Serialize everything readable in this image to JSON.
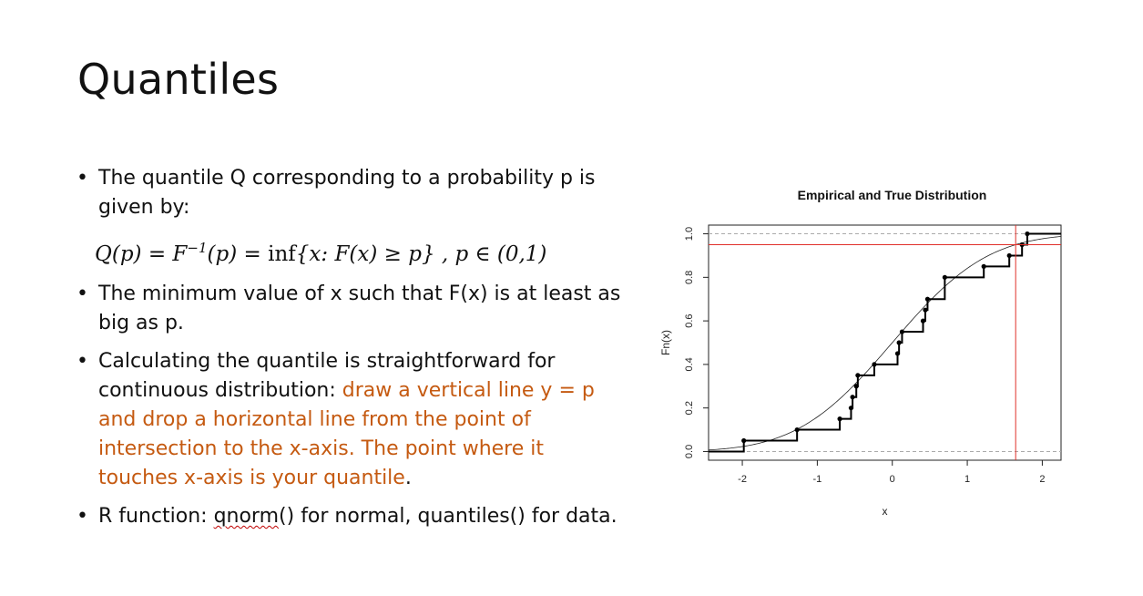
{
  "slide": {
    "title": "Quantiles",
    "bullets": [
      {
        "text": "The quantile Q corresponding to a probability p is given by:"
      },
      {
        "text": "The minimum value of x such that F(x) is at least as big as p."
      },
      {
        "pre": "Calculating the quantile is straightforward for continuous distribution: ",
        "highlight": "draw a vertical line y = p and drop a horizontal line from the point of intersection to the x-axis. The point where it touches x-axis is your quantile",
        "post": "."
      },
      {
        "pre": "R function: ",
        "fn": "qnorm",
        "post": "() for normal, quantiles() for data."
      }
    ],
    "formula": {
      "lhs": "Q(p) = F",
      "sup": "−1",
      "rhs": "(p) = ",
      "inf": "inf",
      "set": "{x: F(x) ≥ p} ,  p ∈ (0,1)"
    }
  },
  "colors": {
    "highlight": "#c55a11",
    "quantile_lines": "#e0302a"
  },
  "chart_data": {
    "type": "line",
    "title": "Empirical and True Distribution",
    "xlabel": "x",
    "ylabel": "Fn(x)",
    "xlim": [
      -2.45,
      2.25
    ],
    "ylim": [
      0,
      1.0
    ],
    "xticks": [
      -2,
      -1,
      0,
      1,
      2
    ],
    "yticks": [
      0.0,
      0.2,
      0.4,
      0.6,
      0.8,
      1.0
    ],
    "xtick_labels": [
      "-2",
      "-1",
      "0",
      "1",
      "2"
    ],
    "ytick_labels": [
      "0.0",
      "0.2",
      "0.4",
      "0.6",
      "0.8",
      "1.0"
    ],
    "ecdf_jumps_x": [
      -1.98,
      -1.27,
      -0.7,
      -0.55,
      -0.53,
      -0.48,
      -0.46,
      -0.24,
      0.07,
      0.09,
      0.13,
      0.41,
      0.44,
      0.47,
      0.7,
      1.22,
      1.56,
      1.73,
      1.8
    ],
    "ecdf_jumps_y": [
      0.05,
      0.1,
      0.15,
      0.2,
      0.25,
      0.3,
      0.35,
      0.4,
      0.45,
      0.5,
      0.55,
      0.6,
      0.65,
      0.7,
      0.8,
      0.85,
      0.9,
      0.95,
      1.0
    ],
    "true_cdf": "normal(0,1)",
    "quantile_p": 0.95,
    "quantile_x": 1.645,
    "dashed_hlines": [
      0,
      1
    ]
  }
}
